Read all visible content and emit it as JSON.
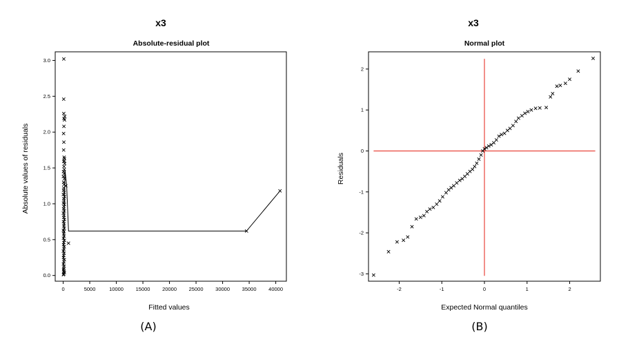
{
  "chart_data": [
    {
      "type": "scatter",
      "panel_label": "(A)",
      "title": "x3",
      "subtitle": "Absolute-residual plot",
      "xlabel": "Fitted values",
      "ylabel": "Absolute values of residuals",
      "xlim": [
        -1500,
        42000
      ],
      "ylim": [
        -0.08,
        3.12
      ],
      "xticks": [
        0,
        5000,
        10000,
        15000,
        20000,
        25000,
        30000,
        35000,
        40000
      ],
      "yticks": [
        0.0,
        0.5,
        1.0,
        1.5,
        2.0,
        2.5,
        3.0
      ],
      "yticklabels": [
        "0.0",
        "0.5",
        "1.0",
        "1.5",
        "2.0",
        "2.5",
        "3.0"
      ],
      "grid": false,
      "marker": "x",
      "points": [
        [
          120,
          3.02
        ],
        [
          100,
          2.46
        ],
        [
          110,
          2.26
        ],
        [
          300,
          2.22
        ],
        [
          150,
          2.19
        ],
        [
          260,
          2.17
        ],
        [
          140,
          2.08
        ],
        [
          80,
          1.98
        ],
        [
          130,
          1.86
        ],
        [
          90,
          1.75
        ],
        [
          180,
          1.65
        ],
        [
          240,
          1.63
        ],
        [
          200,
          1.6
        ],
        [
          110,
          1.59
        ],
        [
          280,
          1.56
        ],
        [
          150,
          1.52
        ],
        [
          210,
          1.48
        ],
        [
          60,
          1.45
        ],
        [
          170,
          1.42
        ],
        [
          40,
          1.38
        ],
        [
          230,
          1.35
        ],
        [
          90,
          1.3
        ],
        [
          160,
          1.27
        ],
        [
          500,
          1.25
        ],
        [
          120,
          1.22
        ],
        [
          70,
          1.19
        ],
        [
          200,
          1.16
        ],
        [
          30,
          1.13
        ],
        [
          250,
          1.1
        ],
        [
          100,
          1.07
        ],
        [
          170,
          1.04
        ],
        [
          50,
          1.01
        ],
        [
          220,
          0.99
        ],
        [
          130,
          0.96
        ],
        [
          80,
          0.93
        ],
        [
          200,
          0.9
        ],
        [
          30,
          0.87
        ],
        [
          150,
          0.84
        ],
        [
          100,
          0.81
        ],
        [
          240,
          0.78
        ],
        [
          60,
          0.75
        ],
        [
          170,
          0.72
        ],
        [
          120,
          0.69
        ],
        [
          210,
          0.66
        ],
        [
          40,
          0.63
        ],
        [
          150,
          0.61
        ],
        [
          90,
          0.58
        ],
        [
          180,
          0.55
        ],
        [
          50,
          0.52
        ],
        [
          230,
          0.49
        ],
        [
          120,
          0.46
        ],
        [
          70,
          0.43
        ],
        [
          200,
          0.4
        ],
        [
          140,
          0.37
        ],
        [
          30,
          0.34
        ],
        [
          180,
          0.31
        ],
        [
          100,
          0.28
        ],
        [
          60,
          0.25
        ],
        [
          220,
          0.22
        ],
        [
          140,
          0.19
        ],
        [
          40,
          0.16
        ],
        [
          190,
          0.13
        ],
        [
          110,
          0.1
        ],
        [
          70,
          0.08
        ],
        [
          160,
          0.06
        ],
        [
          220,
          0.04
        ],
        [
          100,
          0.02
        ],
        [
          50,
          0.01
        ],
        [
          1000,
          0.45
        ],
        [
          34500,
          0.62
        ],
        [
          40800,
          1.18
        ]
      ],
      "line": [
        [
          0,
          0.0
        ],
        [
          350,
          1.47
        ],
        [
          650,
          1.25
        ],
        [
          1000,
          0.62
        ],
        [
          34500,
          0.62
        ],
        [
          40800,
          1.18
        ]
      ]
    },
    {
      "type": "scatter",
      "panel_label": "(B)",
      "title": "x3",
      "subtitle": "Normal plot",
      "xlabel": "Expected Normal quantiles",
      "ylabel": "Residuals",
      "xlim": [
        -2.72,
        2.72
      ],
      "ylim": [
        -3.18,
        2.42
      ],
      "xticks": [
        -2,
        -1,
        0,
        1,
        2
      ],
      "yticks": [
        -3,
        -2,
        -1,
        0,
        1,
        2
      ],
      "grid": false,
      "marker": "x",
      "reference_lines": {
        "x": 0,
        "y": 0,
        "color": "#e8433b",
        "h_range": [
          -2.6,
          2.6
        ],
        "v_range": [
          -3.05,
          2.25
        ]
      },
      "points": [
        [
          -2.6,
          -3.03
        ],
        [
          -2.25,
          -2.46
        ],
        [
          -2.05,
          -2.22
        ],
        [
          -1.9,
          -2.18
        ],
        [
          -1.8,
          -2.1
        ],
        [
          -1.7,
          -1.85
        ],
        [
          -1.6,
          -1.66
        ],
        [
          -1.5,
          -1.62
        ],
        [
          -1.42,
          -1.58
        ],
        [
          -1.35,
          -1.48
        ],
        [
          -1.28,
          -1.42
        ],
        [
          -1.2,
          -1.38
        ],
        [
          -1.12,
          -1.3
        ],
        [
          -1.05,
          -1.22
        ],
        [
          -0.98,
          -1.12
        ],
        [
          -0.9,
          -1.02
        ],
        [
          -0.84,
          -0.95
        ],
        [
          -0.78,
          -0.9
        ],
        [
          -0.72,
          -0.85
        ],
        [
          -0.65,
          -0.78
        ],
        [
          -0.58,
          -0.72
        ],
        [
          -0.52,
          -0.68
        ],
        [
          -0.46,
          -0.62
        ],
        [
          -0.4,
          -0.56
        ],
        [
          -0.34,
          -0.5
        ],
        [
          -0.28,
          -0.45
        ],
        [
          -0.23,
          -0.38
        ],
        [
          -0.18,
          -0.3
        ],
        [
          -0.13,
          -0.2
        ],
        [
          -0.08,
          -0.1
        ],
        [
          -0.04,
          0.0
        ],
        [
          0.0,
          0.05
        ],
        [
          0.05,
          0.08
        ],
        [
          0.1,
          0.12
        ],
        [
          0.16,
          0.15
        ],
        [
          0.22,
          0.2
        ],
        [
          0.28,
          0.27
        ],
        [
          0.34,
          0.36
        ],
        [
          0.4,
          0.4
        ],
        [
          0.47,
          0.43
        ],
        [
          0.54,
          0.5
        ],
        [
          0.6,
          0.55
        ],
        [
          0.67,
          0.62
        ],
        [
          0.74,
          0.72
        ],
        [
          0.8,
          0.8
        ],
        [
          0.88,
          0.86
        ],
        [
          0.95,
          0.92
        ],
        [
          1.02,
          0.96
        ],
        [
          1.1,
          1.0
        ],
        [
          1.2,
          1.04
        ],
        [
          1.3,
          1.05
        ],
        [
          1.45,
          1.06
        ],
        [
          1.55,
          1.32
        ],
        [
          1.6,
          1.4
        ],
        [
          1.7,
          1.58
        ],
        [
          1.78,
          1.6
        ],
        [
          1.9,
          1.65
        ],
        [
          2.0,
          1.75
        ],
        [
          2.2,
          1.95
        ],
        [
          2.55,
          2.26
        ]
      ]
    }
  ]
}
